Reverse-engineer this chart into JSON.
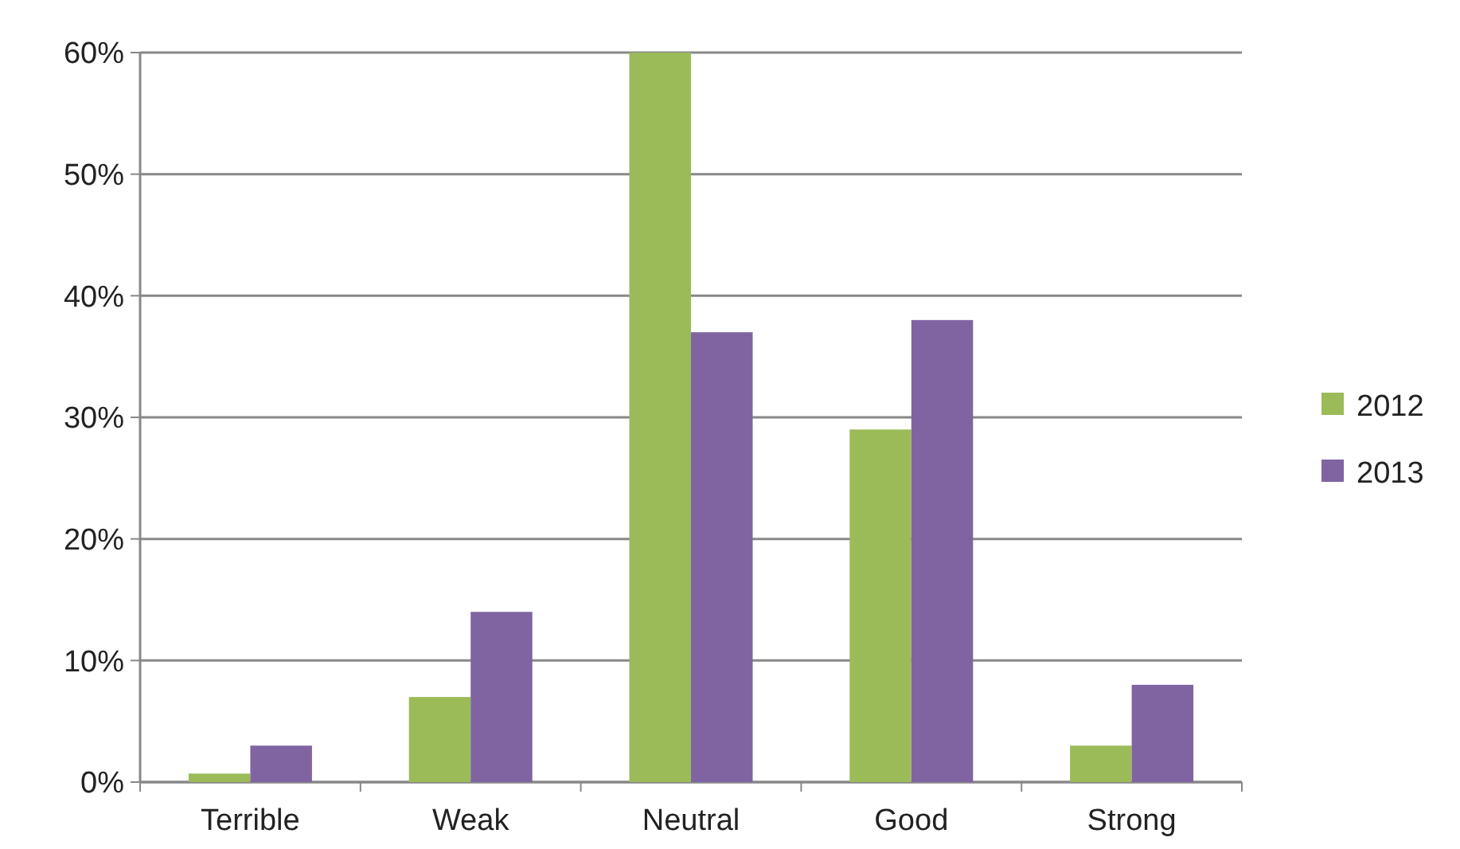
{
  "chart_data": {
    "type": "bar",
    "categories": [
      "Terrible",
      "Weak",
      "Neutral",
      "Good",
      "Strong"
    ],
    "series": [
      {
        "name": "2012",
        "color": "#9bbb59",
        "values": [
          0.7,
          7,
          60,
          29,
          3
        ]
      },
      {
        "name": "2013",
        "color": "#8064a2",
        "values": [
          3,
          14,
          37,
          38,
          8
        ]
      }
    ],
    "ylim": [
      0,
      60
    ],
    "yticks": [
      {
        "value": 0,
        "label": "0%"
      },
      {
        "value": 10,
        "label": "10%"
      },
      {
        "value": 20,
        "label": "20%"
      },
      {
        "value": 30,
        "label": "30%"
      },
      {
        "value": 40,
        "label": "40%"
      },
      {
        "value": 50,
        "label": "50%"
      },
      {
        "value": 60,
        "label": "60%"
      }
    ],
    "grid": "y",
    "legend": "right"
  }
}
